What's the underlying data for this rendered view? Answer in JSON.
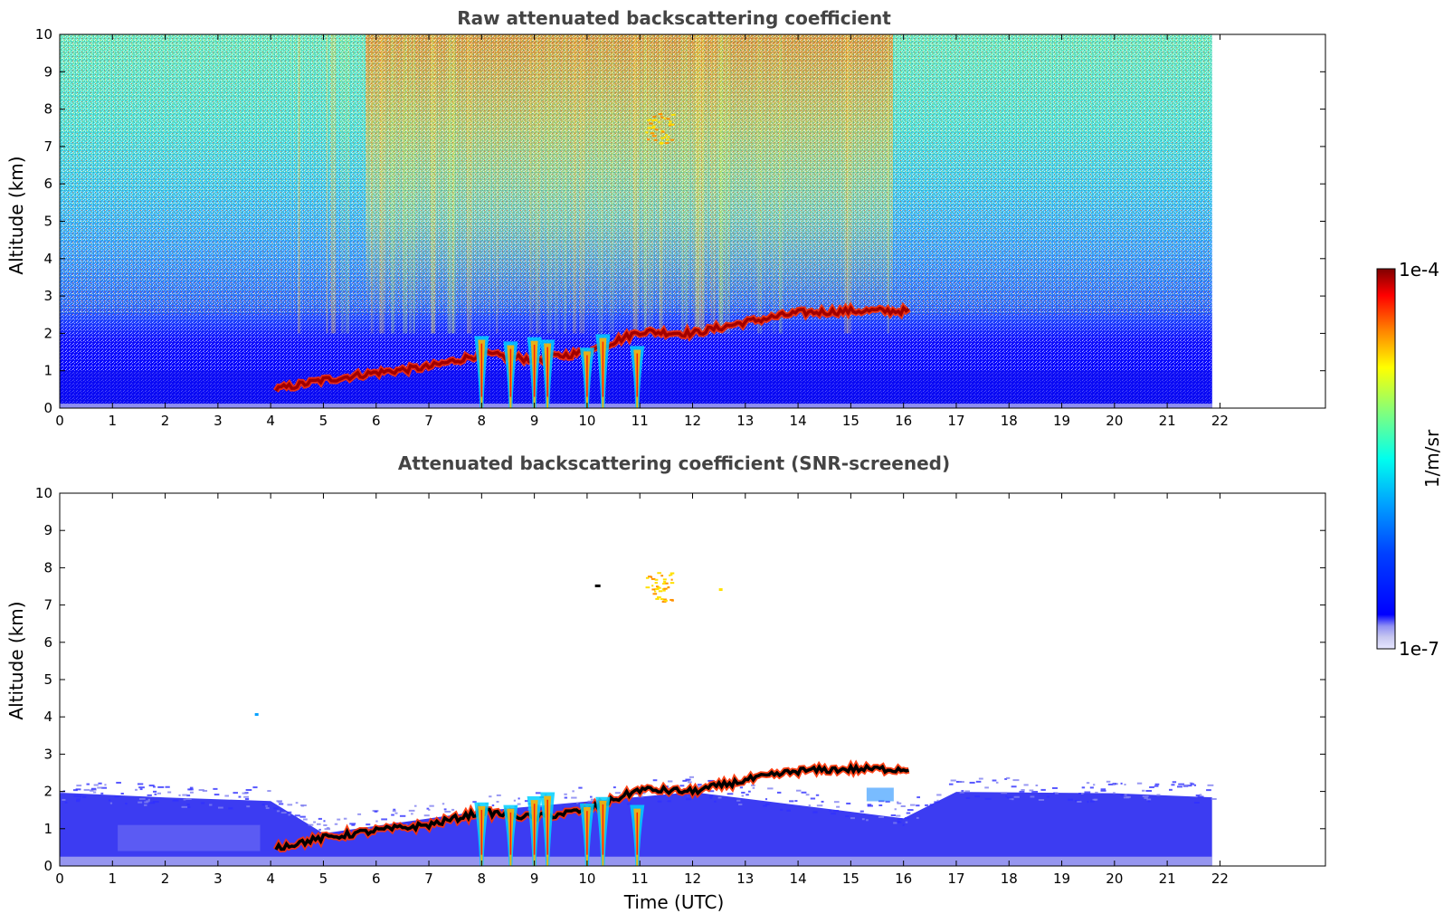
{
  "colors": {
    "jet": [
      "#00007f",
      "#0000ff",
      "#007fff",
      "#00ffff",
      "#7fff7f",
      "#ffff00",
      "#ff7f00",
      "#ff0000",
      "#7f0000"
    ],
    "low_tone": [
      "#e6e6ff",
      "#c8c8f0",
      "#a8a8ee",
      "#8c8cf2"
    ],
    "title": "#444444"
  },
  "chart_data": [
    {
      "type": "heatmap",
      "title": "Raw attenuated backscattering coefficient",
      "ylabel": "Altitude (km)",
      "xlabel": "",
      "xlim": [
        0,
        24
      ],
      "ylim": [
        0,
        10
      ],
      "x_ticks": [
        0,
        1,
        2,
        3,
        4,
        5,
        6,
        7,
        8,
        9,
        10,
        11,
        12,
        13,
        14,
        15,
        16,
        17,
        18,
        19,
        20,
        21,
        22
      ],
      "y_ticks": [
        0,
        1,
        2,
        3,
        4,
        5,
        6,
        7,
        8,
        9,
        10
      ],
      "x_tick_labels": [
        "0",
        "1",
        "2",
        "3",
        "4",
        "5",
        "6",
        "7",
        "8",
        "9",
        "10",
        "11",
        "12",
        "13",
        "14",
        "15",
        "16",
        "17",
        "18",
        "19",
        "20",
        "21",
        "22"
      ],
      "y_tick_labels": [
        "0",
        "1",
        "2",
        "3",
        "4",
        "5",
        "6",
        "7",
        "8",
        "9",
        "10"
      ],
      "data_time_range": [
        0,
        21.85
      ],
      "boundary_layer_top_km": {
        "time": [
          4.1,
          5.0,
          6.0,
          7.0,
          8.0,
          9.0,
          10.0,
          11.0,
          12.0,
          13.0,
          14.0,
          15.0,
          16.1
        ],
        "altitude": [
          0.5,
          0.75,
          0.95,
          1.1,
          1.45,
          1.3,
          1.5,
          2.05,
          2.0,
          2.3,
          2.55,
          2.6,
          2.6
        ]
      },
      "precipitation_streaks_utc": [
        8.0,
        8.55,
        9.0,
        9.25,
        10.0,
        10.3,
        10.95
      ],
      "cirrus_cloud": {
        "time": [
          11.1,
          11.6
        ],
        "altitude": [
          7.1,
          7.9
        ]
      }
    },
    {
      "type": "heatmap",
      "title": "Attenuated backscattering coefficient (SNR-screened)",
      "ylabel": "Altitude (km)",
      "xlabel": "Time (UTC)",
      "xlim": [
        0,
        24
      ],
      "ylim": [
        0,
        10
      ],
      "x_ticks": [
        0,
        1,
        2,
        3,
        4,
        5,
        6,
        7,
        8,
        9,
        10,
        11,
        12,
        13,
        14,
        15,
        16,
        17,
        18,
        19,
        20,
        21,
        22
      ],
      "y_ticks": [
        0,
        1,
        2,
        3,
        4,
        5,
        6,
        7,
        8,
        9,
        10
      ],
      "x_tick_labels": [
        "0",
        "1",
        "2",
        "3",
        "4",
        "5",
        "6",
        "7",
        "8",
        "9",
        "10",
        "11",
        "12",
        "13",
        "14",
        "15",
        "16",
        "17",
        "18",
        "19",
        "20",
        "21",
        "22"
      ],
      "y_tick_labels": [
        "0",
        "1",
        "2",
        "3",
        "4",
        "5",
        "6",
        "7",
        "8",
        "9",
        "10"
      ],
      "data_time_range": [
        0,
        21.85
      ],
      "aerosol_layer_top_km": {
        "time": [
          0,
          2,
          4,
          5,
          8,
          12,
          16,
          17,
          20,
          21.85
        ],
        "altitude": [
          1.9,
          1.8,
          1.7,
          0.9,
          1.5,
          2.0,
          1.3,
          2.0,
          1.9,
          1.9
        ]
      },
      "cirrus_cloud": {
        "time": [
          11.1,
          11.6
        ],
        "altitude": [
          7.1,
          7.9
        ]
      }
    }
  ],
  "colorbar": {
    "min_label": "1e-7",
    "max_label": "1e-4",
    "label": "1/m/sr",
    "scale": "log",
    "range": [
      1e-07,
      0.0001
    ]
  }
}
